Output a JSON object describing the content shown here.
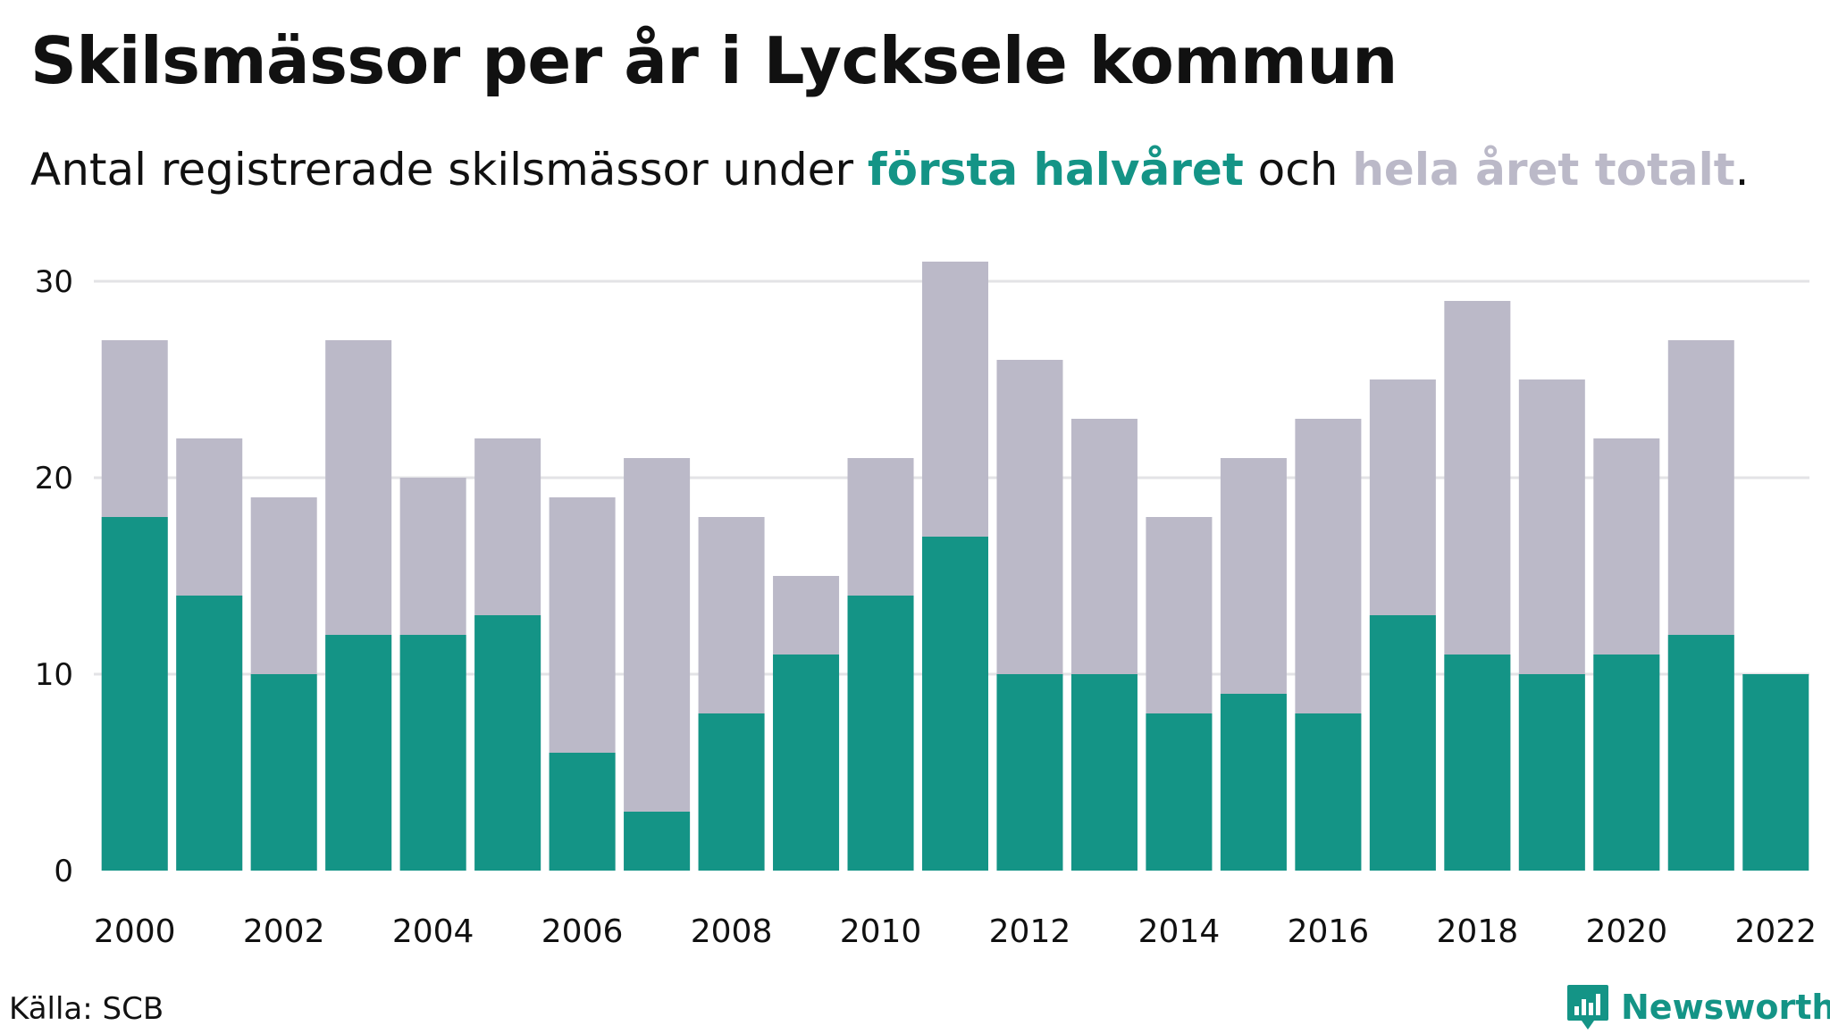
{
  "title": "Skilsmässor per år i Lycksele kommun",
  "subtitle": {
    "prefix": "Antal registrerade skilsmässor under ",
    "first_half": "första halvåret",
    "middle": " och ",
    "total": "hela året totalt",
    "suffix": "."
  },
  "source": "Källa: SCB",
  "brand": "Newsworthy",
  "colors": {
    "first_half": "#149486",
    "total": "#bbb9c8",
    "grid": "#e3e3e6",
    "text": "#111111"
  },
  "chart_data": {
    "type": "bar",
    "stacking": "overlay",
    "categories": [
      "2000",
      "2001",
      "2002",
      "2003",
      "2004",
      "2005",
      "2006",
      "2007",
      "2008",
      "2009",
      "2010",
      "2011",
      "2012",
      "2013",
      "2014",
      "2015",
      "2016",
      "2017",
      "2018",
      "2019",
      "2020",
      "2021",
      "2022"
    ],
    "x_tick_labels": [
      "2000",
      "2002",
      "2004",
      "2006",
      "2008",
      "2010",
      "2012",
      "2014",
      "2016",
      "2018",
      "2020",
      "2022"
    ],
    "y_ticks": [
      0,
      10,
      20,
      30
    ],
    "ylim": [
      0,
      31
    ],
    "grid": true,
    "series": [
      {
        "name": "hela året totalt",
        "color": "#bbb9c8",
        "values": [
          27,
          22,
          19,
          27,
          20,
          22,
          19,
          21,
          18,
          15,
          21,
          31,
          26,
          23,
          18,
          21,
          23,
          25,
          29,
          25,
          22,
          27,
          null
        ]
      },
      {
        "name": "första halvåret",
        "color": "#149486",
        "values": [
          18,
          14,
          10,
          12,
          12,
          13,
          6,
          3,
          8,
          11,
          14,
          17,
          10,
          10,
          8,
          9,
          8,
          13,
          11,
          10,
          11,
          12,
          10
        ]
      }
    ]
  }
}
